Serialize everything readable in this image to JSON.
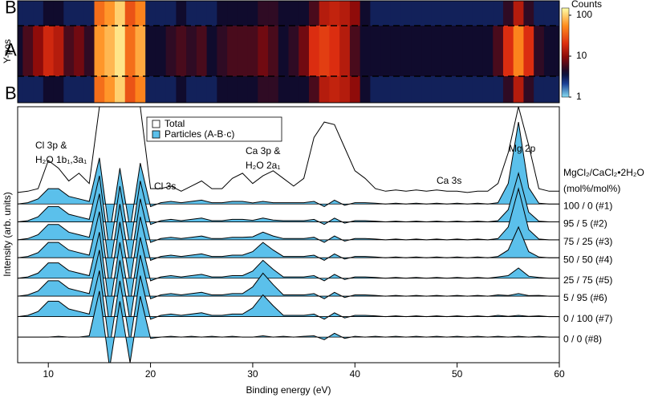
{
  "chart_data": [
    {
      "type": "heatmap",
      "ylabel": "Y-pos",
      "rows": [
        "B",
        "A",
        "B"
      ],
      "x": [
        7,
        8,
        9,
        10,
        11,
        12,
        13,
        14,
        15,
        16,
        17,
        18,
        19,
        20,
        21,
        22,
        23,
        24,
        25,
        26,
        27,
        28,
        29,
        30,
        31,
        32,
        33,
        34,
        35,
        36,
        37,
        38,
        39,
        40,
        41,
        42,
        43,
        44,
        45,
        46,
        47,
        48,
        49,
        50,
        51,
        52,
        53,
        54,
        55,
        56,
        57,
        58,
        59,
        60
      ],
      "xlim": [
        7,
        60
      ],
      "values": [
        [
          3,
          3,
          3,
          4,
          4,
          3,
          3,
          3,
          40,
          60,
          100,
          30,
          50,
          3,
          3,
          3,
          4,
          3,
          3,
          3,
          4,
          4,
          4,
          4,
          5,
          5,
          4,
          4,
          4,
          6,
          14,
          16,
          14,
          10,
          4,
          3,
          3,
          3,
          3,
          3,
          3,
          3,
          3,
          3,
          3,
          3,
          3,
          3,
          5,
          14,
          5,
          3,
          3,
          3
        ],
        [
          4,
          6,
          10,
          18,
          14,
          6,
          8,
          5,
          60,
          80,
          120,
          40,
          70,
          4,
          4,
          5,
          6,
          5,
          6,
          4,
          5,
          6,
          6,
          6,
          8,
          6,
          4,
          5,
          8,
          20,
          24,
          20,
          14,
          6,
          4,
          4,
          4,
          4,
          4,
          4,
          4,
          4,
          4,
          4,
          4,
          4,
          4,
          6,
          20,
          50,
          20,
          5,
          4,
          4
        ],
        [
          3,
          3,
          3,
          4,
          4,
          3,
          3,
          3,
          40,
          60,
          100,
          30,
          50,
          3,
          3,
          3,
          4,
          3,
          3,
          3,
          4,
          4,
          4,
          4,
          5,
          5,
          4,
          4,
          4,
          6,
          14,
          16,
          14,
          10,
          4,
          3,
          3,
          3,
          3,
          3,
          3,
          3,
          3,
          3,
          3,
          3,
          3,
          3,
          5,
          14,
          5,
          3,
          3,
          3
        ]
      ],
      "colorbar": {
        "label": "Counts",
        "lim": [
          1,
          150
        ],
        "ticks": [
          1,
          10,
          100
        ],
        "log": true
      }
    },
    {
      "type": "line",
      "xlabel": "Binding energy (eV)",
      "ylabel": "Intensity (arb. units)",
      "x": [
        7,
        8,
        9,
        10,
        11,
        12,
        13,
        14,
        15,
        16,
        17,
        18,
        19,
        20,
        21,
        22,
        23,
        24,
        25,
        26,
        27,
        28,
        29,
        30,
        31,
        32,
        33,
        34,
        35,
        36,
        37,
        38,
        39,
        40,
        41,
        42,
        43,
        44,
        45,
        46,
        47,
        48,
        49,
        50,
        51,
        52,
        53,
        54,
        55,
        56,
        57,
        58,
        59,
        60
      ],
      "xlim": [
        7,
        60
      ],
      "xticks": [
        10,
        20,
        30,
        40,
        50,
        60
      ],
      "ylim": [
        0,
        100
      ],
      "legend": [
        {
          "name": "Total",
          "color": "#ffffff"
        },
        {
          "name": "Particles (A-B·c)",
          "color": "#5bc0eb"
        }
      ],
      "series_header": [
        "MgCl₂/CaCl₂•2H₂O",
        "(mol%/mol%)"
      ],
      "annotations": [
        "Cl 3p &",
        "H₂O 1b₁,3a₁",
        "Cl 3s",
        "Ca 3p &",
        "H₂O 2a₁",
        "Ca 3s",
        "Mg 2p"
      ],
      "total": {
        "color": "#000000",
        "values": [
          66.5,
          67,
          68,
          79,
          76,
          71,
          74,
          70,
          100,
          100,
          100,
          100,
          100,
          68,
          68,
          69,
          67,
          69,
          71,
          68,
          68,
          72,
          74,
          70,
          73,
          75,
          72,
          69,
          72,
          88,
          94,
          93,
          84,
          75,
          72,
          68,
          67,
          67.5,
          67,
          67.5,
          67,
          67.5,
          67,
          67,
          66.5,
          67,
          67,
          70,
          82,
          100,
          85,
          68,
          67,
          67
        ]
      },
      "series": [
        {
          "name": "100 / 0 (#1)",
          "color": "#5bc0eb",
          "baseline": 62,
          "values": [
            62,
            62.5,
            64,
            68,
            68,
            65,
            64,
            63,
            80,
            50,
            76,
            52,
            78,
            61,
            62.5,
            63,
            62.5,
            63,
            63.5,
            62.5,
            62.5,
            63,
            63,
            62.4,
            63,
            62.5,
            62.5,
            62.5,
            62.5,
            63,
            61,
            63.5,
            61.5,
            62.5,
            62.5,
            62.3,
            62,
            62.3,
            62,
            62.3,
            62,
            62.3,
            62,
            62.3,
            62,
            62.3,
            62,
            62.5,
            70,
            94,
            68.4,
            62.3,
            62,
            62
          ]
        },
        {
          "name": "95 / 5 (#2)",
          "color": "#5bc0eb",
          "baseline": 55,
          "values": [
            55,
            55.5,
            57,
            61,
            61,
            58,
            57,
            56,
            73,
            43,
            69,
            45,
            71,
            54,
            55.5,
            56,
            55.5,
            56,
            56.5,
            55.5,
            55.5,
            56,
            56,
            55.6,
            56.5,
            55.75,
            55.5,
            55.5,
            55.5,
            56,
            54,
            56.5,
            54.5,
            55.5,
            55.5,
            55.3,
            55,
            55.3,
            55,
            55.3,
            55,
            55.3,
            55,
            55.3,
            55,
            55.3,
            55,
            55.5,
            59.75,
            74,
            58.8,
            55.3,
            55,
            55
          ]
        },
        {
          "name": "75 / 25 (#3)",
          "color": "#5bc0eb",
          "baseline": 48,
          "values": [
            48,
            48.5,
            50,
            54,
            54,
            51,
            50,
            49,
            66,
            36,
            62,
            38,
            64,
            47,
            48.5,
            49,
            48.5,
            49,
            49.5,
            48.5,
            48.5,
            49,
            49,
            49.2,
            51,
            49.5,
            48.5,
            48.5,
            48.5,
            49,
            47,
            49.5,
            47.5,
            48.5,
            48.5,
            48.3,
            48,
            48.3,
            48,
            48.3,
            48,
            48.3,
            48,
            48.3,
            48,
            48.3,
            48,
            48.5,
            53,
            68,
            52,
            48.3,
            48,
            48
          ]
        },
        {
          "name": "50 / 50 (#4)",
          "color": "#5bc0eb",
          "baseline": 41,
          "values": [
            41,
            41.5,
            43,
            47,
            47,
            44,
            43,
            42,
            59,
            29,
            55,
            31,
            57,
            40,
            41.5,
            42,
            41.5,
            42,
            42.5,
            41.5,
            41.5,
            42,
            42,
            43.4,
            47,
            44,
            41.5,
            41.5,
            41.5,
            42,
            40,
            42.5,
            40.5,
            41.5,
            41.5,
            41.3,
            41,
            41.3,
            41,
            41.3,
            41,
            41.3,
            41,
            41.3,
            41,
            41.3,
            41,
            41.5,
            44,
            53,
            43.4,
            41.3,
            41,
            41
          ]
        },
        {
          "name": "25 / 75 (#5)",
          "color": "#5bc0eb",
          "baseline": 33,
          "values": [
            33,
            33.5,
            35,
            39,
            39,
            36,
            35,
            34,
            51,
            21,
            47,
            23,
            49,
            32,
            33.5,
            34,
            33.5,
            34,
            34.5,
            33.5,
            33.5,
            34,
            34,
            35.8,
            40,
            36.5,
            33.5,
            33.5,
            33.5,
            34,
            32,
            34.5,
            32.5,
            33.5,
            33.5,
            33.3,
            33,
            33.3,
            33,
            33.3,
            33,
            33.3,
            33,
            33.3,
            33,
            33.3,
            33,
            33.5,
            34,
            37,
            33.8,
            33.3,
            33,
            33
          ]
        },
        {
          "name": "5 / 95 (#6)",
          "color": "#5bc0eb",
          "baseline": 26,
          "values": [
            26,
            26.5,
            28,
            32,
            32,
            29,
            28,
            27,
            44,
            14,
            40,
            16,
            42,
            25,
            26.5,
            27,
            26.5,
            27,
            27.5,
            26.5,
            26.5,
            27,
            27,
            29.6,
            35,
            30.5,
            26.5,
            26.5,
            26.5,
            27,
            25,
            27.5,
            25.5,
            26.5,
            26.5,
            26.3,
            26,
            26.3,
            26,
            26.3,
            26,
            26.3,
            26,
            26.3,
            26,
            26.3,
            26,
            26.5,
            26.25,
            27,
            26.2,
            26.3,
            26,
            26
          ]
        },
        {
          "name": "0 / 100 (#7)",
          "color": "#5bc0eb",
          "baseline": 18,
          "values": [
            18,
            18.5,
            20,
            24,
            24,
            21,
            20,
            19,
            36,
            6,
            32,
            8,
            34,
            17,
            18.5,
            19,
            18.5,
            19,
            19.5,
            18.5,
            18.5,
            19,
            19,
            21.4,
            26.5,
            22.25,
            18.5,
            18.5,
            18.5,
            19,
            17,
            19.5,
            17.5,
            18.5,
            18.5,
            18.3,
            18,
            18.3,
            18,
            18.3,
            18,
            18.3,
            18,
            18.3,
            18,
            18.3,
            18,
            18.5,
            18.1,
            18.5,
            18.1,
            18.3,
            18,
            18
          ]
        },
        {
          "name": "0 / 0 (#8)",
          "color": "#5bc0eb",
          "baseline": 10,
          "values": [
            10,
            10,
            10,
            10,
            10.3,
            10,
            10,
            10.5,
            28,
            -2,
            24,
            0,
            26,
            9.5,
            10,
            10.3,
            10,
            10.3,
            10,
            10.3,
            10,
            10.3,
            10,
            10,
            10.5,
            10,
            10.3,
            10,
            10.3,
            10.5,
            9,
            11.5,
            9.5,
            10.3,
            10,
            10.3,
            10,
            10.3,
            10,
            10.3,
            10,
            10.3,
            10,
            10.3,
            10,
            10.3,
            10,
            10.3,
            10,
            10.3,
            10,
            10.3,
            10,
            10
          ]
        }
      ]
    }
  ]
}
